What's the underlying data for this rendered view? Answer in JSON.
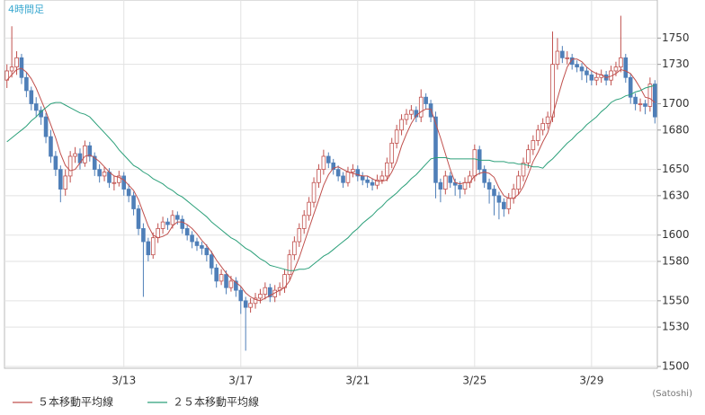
{
  "chart_data": {
    "type": "candlestick",
    "title": "4時間足",
    "source": "(Satoshi)",
    "up_color": "#c0504d",
    "down_color": "#4f7fb8",
    "grid": true,
    "ylim": [
      1498.6,
      1779
    ],
    "yticks": [
      1500,
      1530,
      1550,
      1580,
      1600,
      1630,
      1650,
      1680,
      1700,
      1730,
      1750
    ],
    "categories": [
      null,
      null,
      null,
      null,
      null,
      null,
      null,
      null,
      null,
      null,
      null,
      null,
      null,
      null,
      null,
      null,
      null,
      null,
      null,
      null,
      null,
      null,
      null,
      null,
      "3/13",
      null,
      null,
      null,
      null,
      null,
      null,
      null,
      null,
      null,
      null,
      null,
      null,
      null,
      null,
      null,
      null,
      null,
      null,
      null,
      null,
      null,
      null,
      null,
      "3/17",
      null,
      null,
      null,
      null,
      null,
      null,
      null,
      null,
      null,
      null,
      null,
      null,
      null,
      null,
      null,
      null,
      null,
      null,
      null,
      null,
      null,
      null,
      null,
      "3/21",
      null,
      null,
      null,
      null,
      null,
      null,
      null,
      null,
      null,
      null,
      null,
      null,
      null,
      null,
      null,
      null,
      null,
      null,
      null,
      null,
      null,
      null,
      null,
      "3/25",
      null,
      null,
      null,
      null,
      null,
      null,
      null,
      null,
      null,
      null,
      null,
      null,
      null,
      null,
      null,
      null,
      null,
      null,
      null,
      null,
      null,
      null,
      null,
      "3/29",
      null,
      null,
      null,
      null,
      null,
      null,
      null,
      null,
      null,
      null,
      null,
      null,
      null
    ],
    "ohlc": [
      [
        1718,
        1730,
        1712,
        1725
      ],
      [
        1725,
        1759,
        1720,
        1728
      ],
      [
        1728,
        1740,
        1722,
        1735
      ],
      [
        1735,
        1738,
        1715,
        1720
      ],
      [
        1720,
        1724,
        1705,
        1710
      ],
      [
        1710,
        1713,
        1695,
        1700
      ],
      [
        1700,
        1705,
        1690,
        1695
      ],
      [
        1695,
        1698,
        1684,
        1690
      ],
      [
        1690,
        1693,
        1670,
        1675
      ],
      [
        1675,
        1680,
        1655,
        1660
      ],
      [
        1660,
        1664,
        1645,
        1650
      ],
      [
        1650,
        1653,
        1625,
        1635
      ],
      [
        1635,
        1650,
        1630,
        1645
      ],
      [
        1645,
        1664,
        1640,
        1660
      ],
      [
        1660,
        1667,
        1655,
        1662
      ],
      [
        1662,
        1666,
        1650,
        1655
      ],
      [
        1655,
        1672,
        1652,
        1668
      ],
      [
        1668,
        1671,
        1656,
        1660
      ],
      [
        1660,
        1663,
        1645,
        1650
      ],
      [
        1650,
        1654,
        1640,
        1645
      ],
      [
        1645,
        1652,
        1641,
        1648
      ],
      [
        1648,
        1651,
        1636,
        1640
      ],
      [
        1640,
        1645,
        1634,
        1640
      ],
      [
        1640,
        1649,
        1637,
        1645
      ],
      [
        1645,
        1648,
        1630,
        1635
      ],
      [
        1635,
        1639,
        1625,
        1630
      ],
      [
        1630,
        1633,
        1615,
        1620
      ],
      [
        1620,
        1623,
        1600,
        1605
      ],
      [
        1605,
        1609,
        1553,
        1595
      ],
      [
        1595,
        1598,
        1580,
        1585
      ],
      [
        1585,
        1602,
        1582,
        1598
      ],
      [
        1598,
        1609,
        1594,
        1605
      ],
      [
        1605,
        1614,
        1601,
        1610
      ],
      [
        1610,
        1613,
        1604,
        1608
      ],
      [
        1608,
        1619,
        1605,
        1615
      ],
      [
        1615,
        1618,
        1608,
        1612
      ],
      [
        1612,
        1615,
        1601,
        1605
      ],
      [
        1605,
        1608,
        1596,
        1600
      ],
      [
        1600,
        1603,
        1590,
        1595
      ],
      [
        1595,
        1598,
        1588,
        1592
      ],
      [
        1592,
        1595,
        1585,
        1590
      ],
      [
        1590,
        1593,
        1580,
        1585
      ],
      [
        1585,
        1588,
        1570,
        1575
      ],
      [
        1575,
        1578,
        1560,
        1565
      ],
      [
        1565,
        1574,
        1562,
        1570
      ],
      [
        1570,
        1573,
        1555,
        1560
      ],
      [
        1560,
        1569,
        1557,
        1565
      ],
      [
        1565,
        1568,
        1553,
        1558
      ],
      [
        1558,
        1561,
        1540,
        1550
      ],
      [
        1550,
        1553,
        1512,
        1545
      ],
      [
        1545,
        1552,
        1541,
        1548
      ],
      [
        1548,
        1556,
        1544,
        1552
      ],
      [
        1552,
        1559,
        1548,
        1555
      ],
      [
        1555,
        1564,
        1551,
        1560
      ],
      [
        1560,
        1563,
        1549,
        1553
      ],
      [
        1553,
        1562,
        1549,
        1558
      ],
      [
        1558,
        1564,
        1554,
        1560
      ],
      [
        1560,
        1574,
        1556,
        1570
      ],
      [
        1570,
        1589,
        1566,
        1585
      ],
      [
        1585,
        1599,
        1581,
        1595
      ],
      [
        1595,
        1609,
        1591,
        1605
      ],
      [
        1605,
        1619,
        1601,
        1615
      ],
      [
        1615,
        1629,
        1611,
        1625
      ],
      [
        1625,
        1644,
        1621,
        1640
      ],
      [
        1640,
        1654,
        1636,
        1650
      ],
      [
        1650,
        1665,
        1646,
        1660
      ],
      [
        1660,
        1663,
        1651,
        1655
      ],
      [
        1655,
        1658,
        1646,
        1650
      ],
      [
        1650,
        1653,
        1641,
        1645
      ],
      [
        1645,
        1648,
        1636,
        1640
      ],
      [
        1640,
        1652,
        1637,
        1648
      ],
      [
        1648,
        1654,
        1644,
        1650
      ],
      [
        1650,
        1653,
        1641,
        1645
      ],
      [
        1645,
        1648,
        1638,
        1642
      ],
      [
        1642,
        1645,
        1636,
        1640
      ],
      [
        1640,
        1643,
        1634,
        1638
      ],
      [
        1638,
        1646,
        1635,
        1642
      ],
      [
        1642,
        1649,
        1639,
        1645
      ],
      [
        1645,
        1659,
        1641,
        1655
      ],
      [
        1655,
        1674,
        1651,
        1670
      ],
      [
        1670,
        1684,
        1666,
        1680
      ],
      [
        1680,
        1692,
        1676,
        1688
      ],
      [
        1688,
        1696,
        1684,
        1692
      ],
      [
        1692,
        1699,
        1688,
        1695
      ],
      [
        1695,
        1698,
        1686,
        1690
      ],
      [
        1690,
        1711,
        1686,
        1705
      ],
      [
        1705,
        1708,
        1696,
        1700
      ],
      [
        1700,
        1703,
        1686,
        1690
      ],
      [
        1690,
        1694,
        1628,
        1640
      ],
      [
        1640,
        1643,
        1625,
        1635
      ],
      [
        1635,
        1649,
        1631,
        1645
      ],
      [
        1645,
        1648,
        1636,
        1640
      ],
      [
        1640,
        1643,
        1630,
        1638
      ],
      [
        1638,
        1641,
        1628,
        1635
      ],
      [
        1635,
        1644,
        1631,
        1640
      ],
      [
        1640,
        1649,
        1636,
        1645
      ],
      [
        1645,
        1669,
        1641,
        1665
      ],
      [
        1665,
        1668,
        1646,
        1650
      ],
      [
        1650,
        1653,
        1636,
        1640
      ],
      [
        1640,
        1643,
        1624,
        1635
      ],
      [
        1635,
        1638,
        1615,
        1630
      ],
      [
        1630,
        1633,
        1612,
        1625
      ],
      [
        1625,
        1628,
        1614,
        1620
      ],
      [
        1620,
        1632,
        1616,
        1628
      ],
      [
        1628,
        1639,
        1624,
        1635
      ],
      [
        1635,
        1649,
        1631,
        1645
      ],
      [
        1645,
        1659,
        1641,
        1655
      ],
      [
        1655,
        1669,
        1651,
        1665
      ],
      [
        1665,
        1676,
        1661,
        1672
      ],
      [
        1672,
        1684,
        1668,
        1680
      ],
      [
        1680,
        1689,
        1676,
        1685
      ],
      [
        1685,
        1694,
        1681,
        1690
      ],
      [
        1690,
        1755,
        1686,
        1730
      ],
      [
        1730,
        1750,
        1726,
        1740
      ],
      [
        1740,
        1744,
        1731,
        1735
      ],
      [
        1735,
        1740,
        1730,
        1735
      ],
      [
        1735,
        1738,
        1726,
        1730
      ],
      [
        1730,
        1733,
        1724,
        1728
      ],
      [
        1728,
        1731,
        1718,
        1725
      ],
      [
        1725,
        1728,
        1716,
        1722
      ],
      [
        1722,
        1725,
        1714,
        1718
      ],
      [
        1718,
        1724,
        1714,
        1720
      ],
      [
        1720,
        1726,
        1716,
        1722
      ],
      [
        1722,
        1725,
        1714,
        1718
      ],
      [
        1718,
        1729,
        1714,
        1725
      ],
      [
        1725,
        1732,
        1721,
        1728
      ],
      [
        1728,
        1767,
        1724,
        1735
      ],
      [
        1735,
        1738,
        1716,
        1720
      ],
      [
        1720,
        1723,
        1700,
        1705
      ],
      [
        1705,
        1708,
        1695,
        1700
      ],
      [
        1700,
        1704,
        1694,
        1700
      ],
      [
        1700,
        1703,
        1692,
        1698
      ],
      [
        1698,
        1720,
        1694,
        1715
      ],
      [
        1715,
        1718,
        1685,
        1690
      ]
    ],
    "series": [
      {
        "name": "５本移動平均線",
        "color": "#c0504d",
        "values": [
          1718,
          1722,
          1726,
          1727,
          1724,
          1719,
          1712,
          1703,
          1694,
          1684,
          1674,
          1662,
          1653,
          1649,
          1650,
          1655,
          1660,
          1661,
          1659,
          1656,
          1652,
          1648,
          1645,
          1644,
          1642,
          1638,
          1634,
          1627,
          1617,
          1607,
          1600,
          1598,
          1599,
          1601,
          1607,
          1610,
          1610,
          1608,
          1605,
          1601,
          1596,
          1592,
          1587,
          1581,
          1576,
          1571,
          1567,
          1564,
          1561,
          1556,
          1553,
          1551,
          1550,
          1552,
          1554,
          1556,
          1558,
          1560,
          1565,
          1574,
          1583,
          1594,
          1605,
          1616,
          1627,
          1638,
          1646,
          1651,
          1652,
          1650,
          1648,
          1647,
          1646,
          1645,
          1645,
          1643,
          1641,
          1641,
          1642,
          1648,
          1656,
          1668,
          1677,
          1685,
          1691,
          1694,
          1696,
          1696,
          1685,
          1674,
          1662,
          1650,
          1640,
          1639,
          1640,
          1640,
          1645,
          1647,
          1648,
          1647,
          1644,
          1636,
          1630,
          1628,
          1628,
          1631,
          1637,
          1646,
          1656,
          1663,
          1671,
          1678,
          1691,
          1704,
          1717,
          1728,
          1734,
          1734,
          1732,
          1728,
          1725,
          1723,
          1722,
          1720,
          1721,
          1723,
          1726,
          1725,
          1723,
          1718,
          1712,
          1705,
          1704,
          1701
        ]
      },
      {
        "name": "２５本移動平均線",
        "color": "#2ca07a",
        "values": [
          1671,
          1674,
          1677,
          1680,
          1683,
          1687,
          1690,
          1694,
          1697,
          1700,
          1701,
          1701,
          1699,
          1697,
          1695,
          1693,
          1692,
          1690,
          1686,
          1682,
          1678,
          1674,
          1670,
          1665,
          1661,
          1657,
          1653,
          1651,
          1648,
          1646,
          1643,
          1641,
          1639,
          1636,
          1634,
          1631,
          1629,
          1626,
          1623,
          1620,
          1617,
          1614,
          1610,
          1607,
          1604,
          1601,
          1598,
          1596,
          1593,
          1590,
          1588,
          1585,
          1582,
          1580,
          1577,
          1576,
          1575,
          1574,
          1573,
          1573,
          1574,
          1574,
          1575,
          1578,
          1581,
          1584,
          1586,
          1589,
          1592,
          1595,
          1598,
          1602,
          1605,
          1609,
          1612,
          1615,
          1619,
          1622,
          1626,
          1629,
          1632,
          1636,
          1639,
          1643,
          1646,
          1650,
          1654,
          1658,
          1659,
          1659,
          1659,
          1658,
          1658,
          1658,
          1658,
          1658,
          1658,
          1657,
          1657,
          1657,
          1656,
          1656,
          1656,
          1655,
          1655,
          1654,
          1654,
          1653,
          1652,
          1652,
          1651,
          1655,
          1658,
          1662,
          1666,
          1670,
          1673,
          1677,
          1680,
          1684,
          1687,
          1690,
          1694,
          1697,
          1701,
          1703,
          1704,
          1706,
          1707,
          1709,
          1710,
          1712,
          1713,
          1714
        ]
      }
    ]
  }
}
